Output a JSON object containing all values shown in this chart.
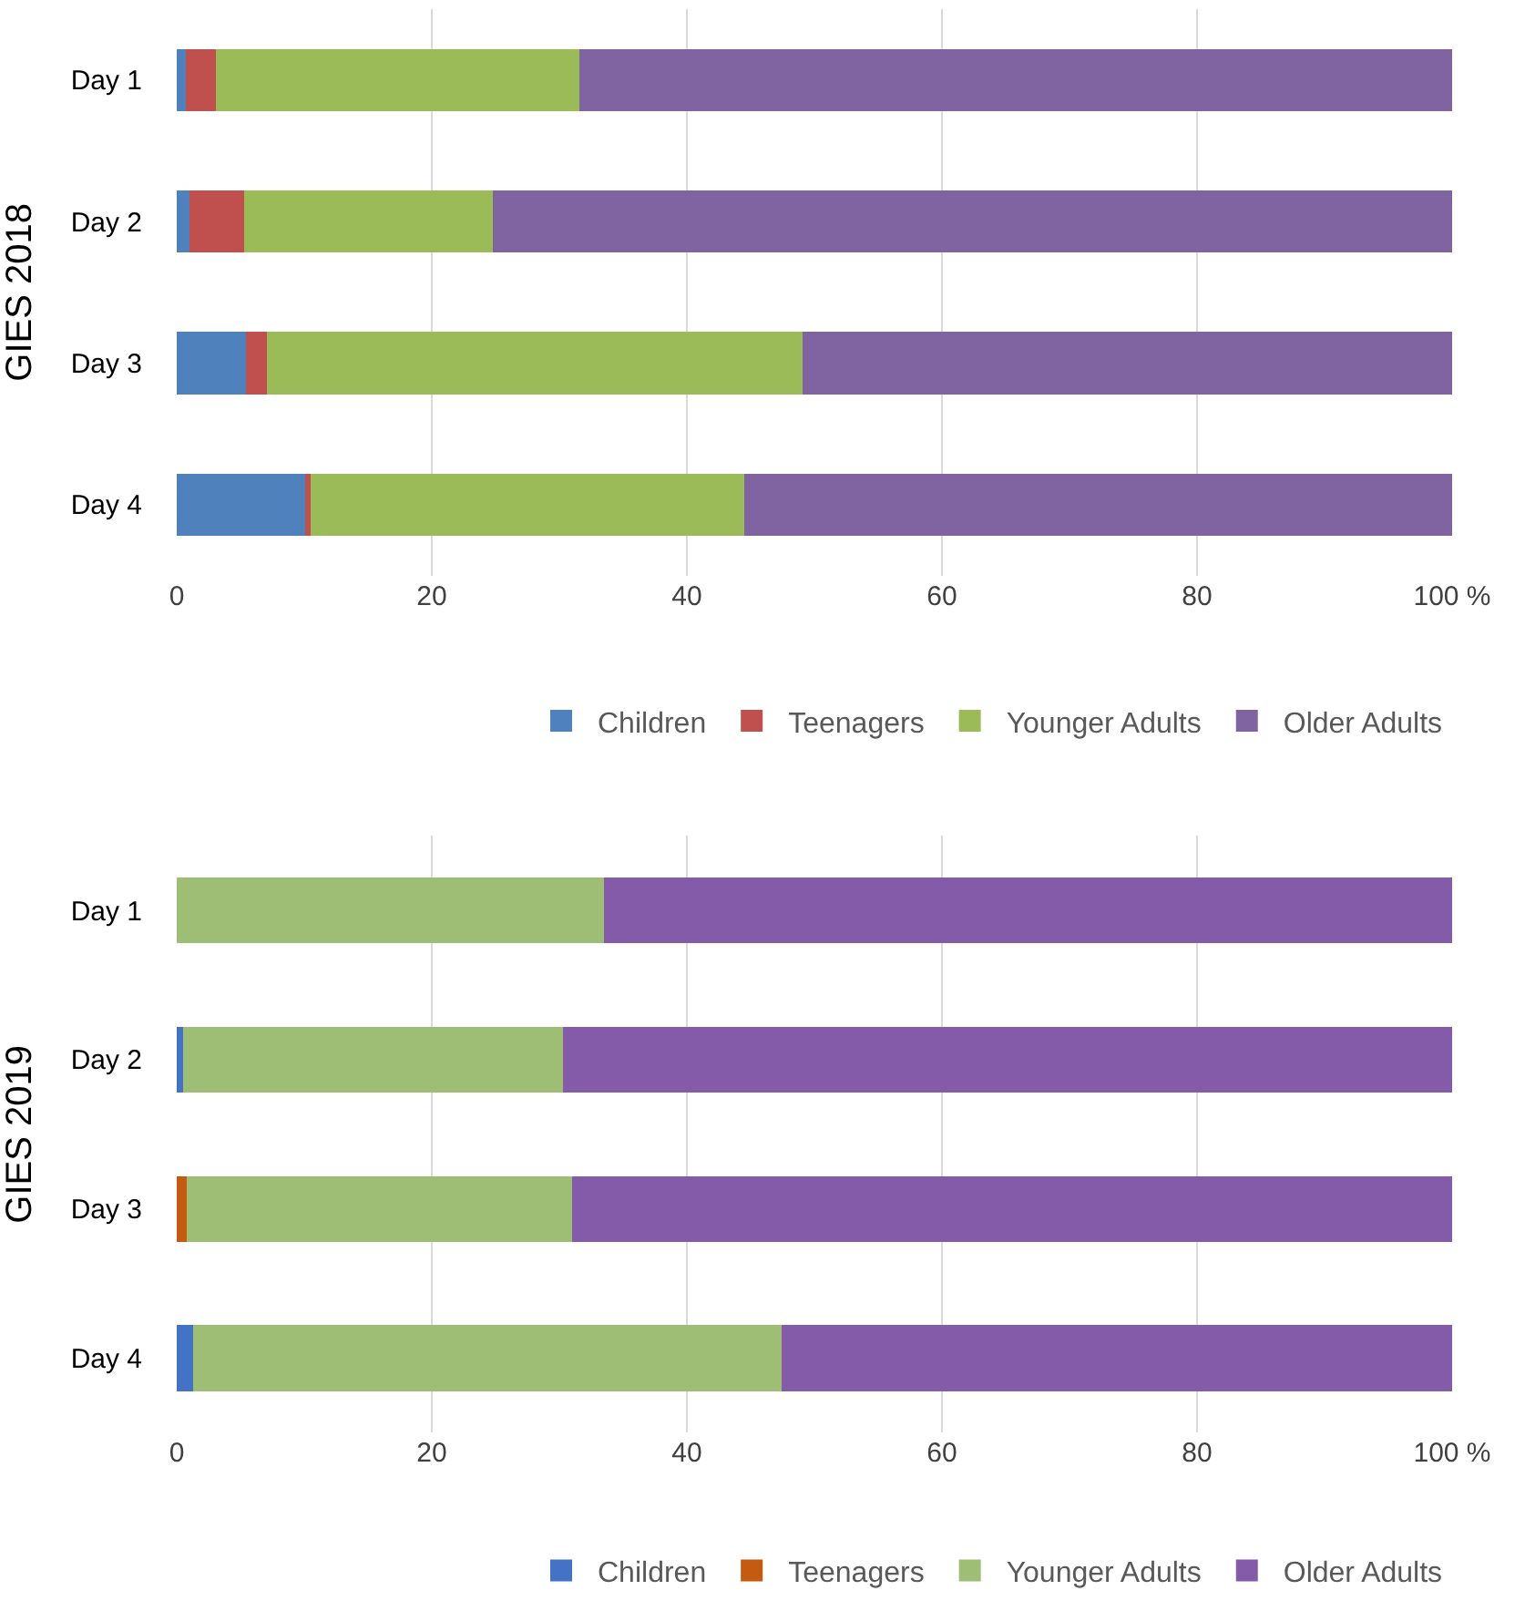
{
  "chart_data": [
    {
      "type": "bar",
      "orientation": "horizontal",
      "stacked": true,
      "ylabel": "GIES 2018",
      "categories": [
        "Day 1",
        "Day 2",
        "Day 3",
        "Day 4"
      ],
      "xlim": [
        0,
        100
      ],
      "xticks": [
        0,
        20,
        40,
        60,
        80,
        {
          "value": 100,
          "label": "100 %"
        }
      ],
      "grid": "x",
      "legend": "bottom",
      "series": [
        {
          "name": "Children",
          "color": "#4f81bd",
          "values": [
            0.7,
            1.0,
            5.4,
            10.1
          ]
        },
        {
          "name": "Teenagers",
          "color": "#c0504d",
          "values": [
            2.4,
            4.3,
            1.7,
            0.4
          ]
        },
        {
          "name": "Younger Adults",
          "color": "#9bbb59",
          "values": [
            28.5,
            19.5,
            42.0,
            34.0
          ]
        },
        {
          "name": "Older Adults",
          "color": "#8064a2",
          "values": [
            68.4,
            75.2,
            50.9,
            55.5
          ]
        }
      ]
    },
    {
      "type": "bar",
      "orientation": "horizontal",
      "stacked": true,
      "ylabel": "GIES 2019",
      "categories": [
        "Day 1",
        "Day 2",
        "Day 3",
        "Day 4"
      ],
      "xlim": [
        0,
        100
      ],
      "xticks": [
        0,
        20,
        40,
        60,
        80,
        {
          "value": 100,
          "label": "100 %"
        }
      ],
      "grid": "x",
      "legend": "bottom",
      "series": [
        {
          "name": "Children",
          "color": "#4472c4",
          "values": [
            0,
            0.5,
            0,
            1.3
          ]
        },
        {
          "name": "Teenagers",
          "color": "#c55a11",
          "values": [
            0,
            0,
            0.8,
            0
          ]
        },
        {
          "name": "Younger Adults",
          "color": "#9fbe75",
          "values": [
            33.5,
            29.8,
            30.2,
            46.1
          ]
        },
        {
          "name": "Older Adults",
          "color": "#845ba8",
          "values": [
            66.5,
            69.7,
            69.0,
            52.6
          ]
        }
      ]
    }
  ]
}
